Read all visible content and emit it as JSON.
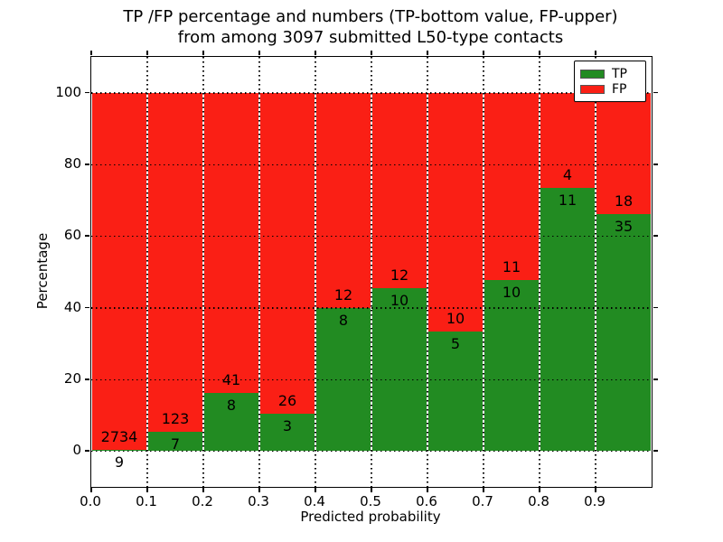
{
  "title": {
    "line1": "TP /FP percentage and numbers (TP-bottom value, FP-upper)",
    "line2": "from among 3097 submitted L50-type contacts"
  },
  "chart_data": {
    "type": "bar",
    "stacking": "percentage",
    "title": "TP /FP percentage and numbers (TP-bottom value, FP-upper) from among 3097 submitted L50-type contacts",
    "xlabel": "Predicted probability",
    "ylabel": "Percentage",
    "total_submitted": 3097,
    "xlim": [
      0.0,
      1.0
    ],
    "ylim": [
      -10,
      110
    ],
    "x_ticks": [
      "0.0",
      "0.1",
      "0.2",
      "0.3",
      "0.4",
      "0.5",
      "0.6",
      "0.7",
      "0.8",
      "0.9"
    ],
    "y_ticks": [
      "0",
      "20",
      "40",
      "60",
      "80",
      "100"
    ],
    "y_tick_values": [
      0,
      20,
      40,
      60,
      80,
      100
    ],
    "grid": true,
    "grid_style": "dotted",
    "categories": [
      "0.0-0.1",
      "0.1-0.2",
      "0.2-0.3",
      "0.3-0.4",
      "0.4-0.5",
      "0.5-0.6",
      "0.6-0.7",
      "0.7-0.8",
      "0.8-0.9",
      "0.9-1.0"
    ],
    "series": [
      {
        "name": "TP",
        "color": "#228b22",
        "counts": [
          9,
          7,
          8,
          3,
          8,
          10,
          5,
          10,
          11,
          35
        ]
      },
      {
        "name": "FP",
        "color": "#fa1f15",
        "counts": [
          2734,
          123,
          41,
          26,
          12,
          12,
          10,
          11,
          4,
          18
        ]
      }
    ],
    "tp_percent": [
      0.33,
      5.38,
      16.33,
      10.34,
      40.0,
      45.45,
      33.33,
      47.62,
      73.33,
      66.04
    ],
    "legend": {
      "position": "upper right",
      "entries": [
        "TP",
        "FP"
      ]
    }
  },
  "colors": {
    "tp": "#228b22",
    "fp": "#fa1f15",
    "background": "#ffffff",
    "text": "#000000"
  }
}
